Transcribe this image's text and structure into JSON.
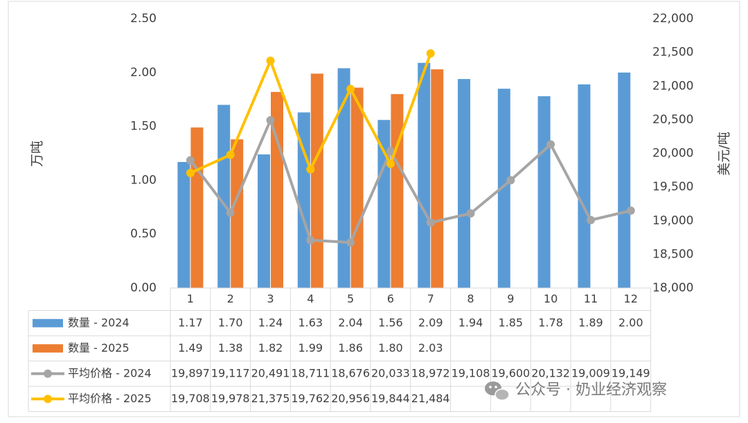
{
  "chart_data": {
    "type": "bar",
    "categories": [
      "1",
      "2",
      "3",
      "4",
      "5",
      "6",
      "7",
      "8",
      "9",
      "10",
      "11",
      "12"
    ],
    "y_left": {
      "label": "万吨",
      "min": 0,
      "max": 2.5,
      "step": 0.5,
      "ticks": [
        "0.00",
        "0.50",
        "1.00",
        "1.50",
        "2.00",
        "2.50"
      ]
    },
    "y_right": {
      "label": "美元/吨",
      "min": 18000,
      "max": 22000,
      "step": 500,
      "ticks": [
        "18,000",
        "18,500",
        "19,000",
        "19,500",
        "20,000",
        "20,500",
        "21,000",
        "21,500",
        "22,000"
      ]
    },
    "grid": false,
    "legend": "data-table",
    "series": [
      {
        "name": "数量 - 2024",
        "kind": "bar",
        "axis": "left",
        "color": "#5b9bd5",
        "values": [
          1.17,
          1.7,
          1.24,
          1.63,
          2.04,
          1.56,
          2.09,
          1.94,
          1.85,
          1.78,
          1.89,
          2.0
        ],
        "labels": [
          "1.17",
          "1.70",
          "1.24",
          "1.63",
          "2.04",
          "1.56",
          "2.09",
          "1.94",
          "1.85",
          "1.78",
          "1.89",
          "2.00"
        ]
      },
      {
        "name": "数量 - 2025",
        "kind": "bar",
        "axis": "left",
        "color": "#ed7d31",
        "values": [
          1.49,
          1.38,
          1.82,
          1.99,
          1.86,
          1.8,
          2.03,
          null,
          null,
          null,
          null,
          null
        ],
        "labels": [
          "1.49",
          "1.38",
          "1.82",
          "1.99",
          "1.86",
          "1.80",
          "2.03",
          "",
          "",
          "",
          "",
          ""
        ]
      },
      {
        "name": "平均价格 - 2024",
        "kind": "line",
        "axis": "right",
        "color": "#a5a5a5",
        "values": [
          19897,
          19117,
          20491,
          18711,
          18676,
          20033,
          18972,
          19108,
          19600,
          20132,
          19009,
          19149
        ],
        "labels": [
          "19,897",
          "19,117",
          "20,491",
          "18,711",
          "18,676",
          "20,033",
          "18,972",
          "19,108",
          "19,600",
          "20,132",
          "19,009",
          "19,149"
        ]
      },
      {
        "name": "平均价格 - 2025",
        "kind": "line",
        "axis": "right",
        "color": "#ffc000",
        "values": [
          19708,
          19978,
          21375,
          19762,
          20956,
          19844,
          21484,
          null,
          null,
          null,
          null,
          null
        ],
        "labels": [
          "19,708",
          "19,978",
          "21,375",
          "19,762",
          "20,956",
          "19,844",
          "21,484",
          "",
          "",
          "",
          "",
          ""
        ]
      }
    ]
  },
  "watermark": {
    "icon": "wechat-icon",
    "text": "公众号 · 奶业经济观察"
  }
}
